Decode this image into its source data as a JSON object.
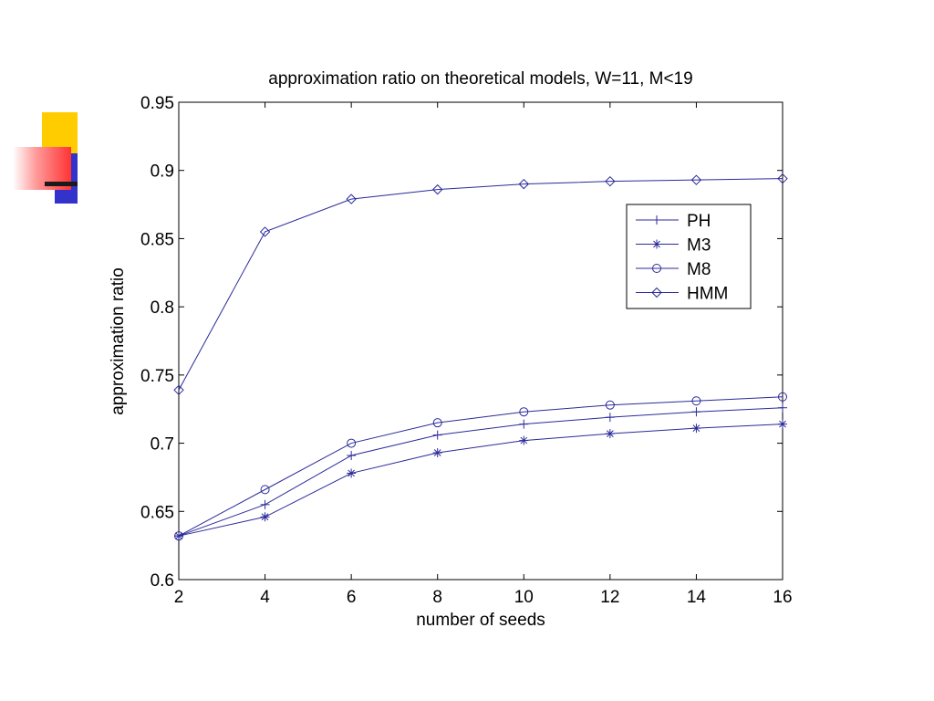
{
  "chart_data": {
    "type": "line",
    "title": "approximation ratio on theoretical models, W=11, M<19",
    "xlabel": "number of seeds",
    "ylabel": "approximation ratio",
    "xlim": [
      2,
      16
    ],
    "ylim": [
      0.6,
      0.95
    ],
    "xticks": [
      "2",
      "4",
      "6",
      "8",
      "10",
      "12",
      "14",
      "16"
    ],
    "yticks": [
      "0.6",
      "0.65",
      "0.7",
      "0.75",
      "0.8",
      "0.85",
      "0.9",
      "0.95"
    ],
    "x": [
      2,
      4,
      6,
      8,
      10,
      12,
      14,
      16
    ],
    "grid": false,
    "legend_position": "right",
    "line_color": "#2a2a9a",
    "series": [
      {
        "name": "PH",
        "marker": "plus",
        "values": [
          0.632,
          0.655,
          0.691,
          0.706,
          0.714,
          0.719,
          0.723,
          0.726
        ]
      },
      {
        "name": "M3",
        "marker": "star",
        "values": [
          0.632,
          0.646,
          0.678,
          0.693,
          0.702,
          0.707,
          0.711,
          0.714
        ]
      },
      {
        "name": "M8",
        "marker": "circle",
        "values": [
          0.632,
          0.666,
          0.7,
          0.715,
          0.723,
          0.728,
          0.731,
          0.734
        ]
      },
      {
        "name": "HMM",
        "marker": "diamond",
        "values": [
          0.739,
          0.855,
          0.879,
          0.886,
          0.89,
          0.892,
          0.893,
          0.894
        ]
      }
    ]
  }
}
